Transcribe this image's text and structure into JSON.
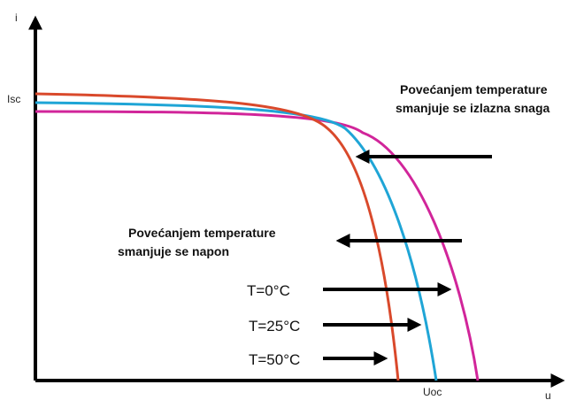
{
  "axes": {
    "y_label": "i",
    "x_label": "u",
    "y_marker": "Isc",
    "x_marker": "Uoc"
  },
  "annotations": [
    {
      "lines": [
        "Povećanjem temperature",
        "smanjuje se izlazna snaga"
      ]
    },
    {
      "lines": [
        "Povećanjem temperature",
        "smanjuje se napon"
      ]
    }
  ],
  "curves": [
    {
      "label": "T=0°C"
    },
    {
      "label": "T=25°C"
    },
    {
      "label": "T=50°C"
    }
  ]
}
